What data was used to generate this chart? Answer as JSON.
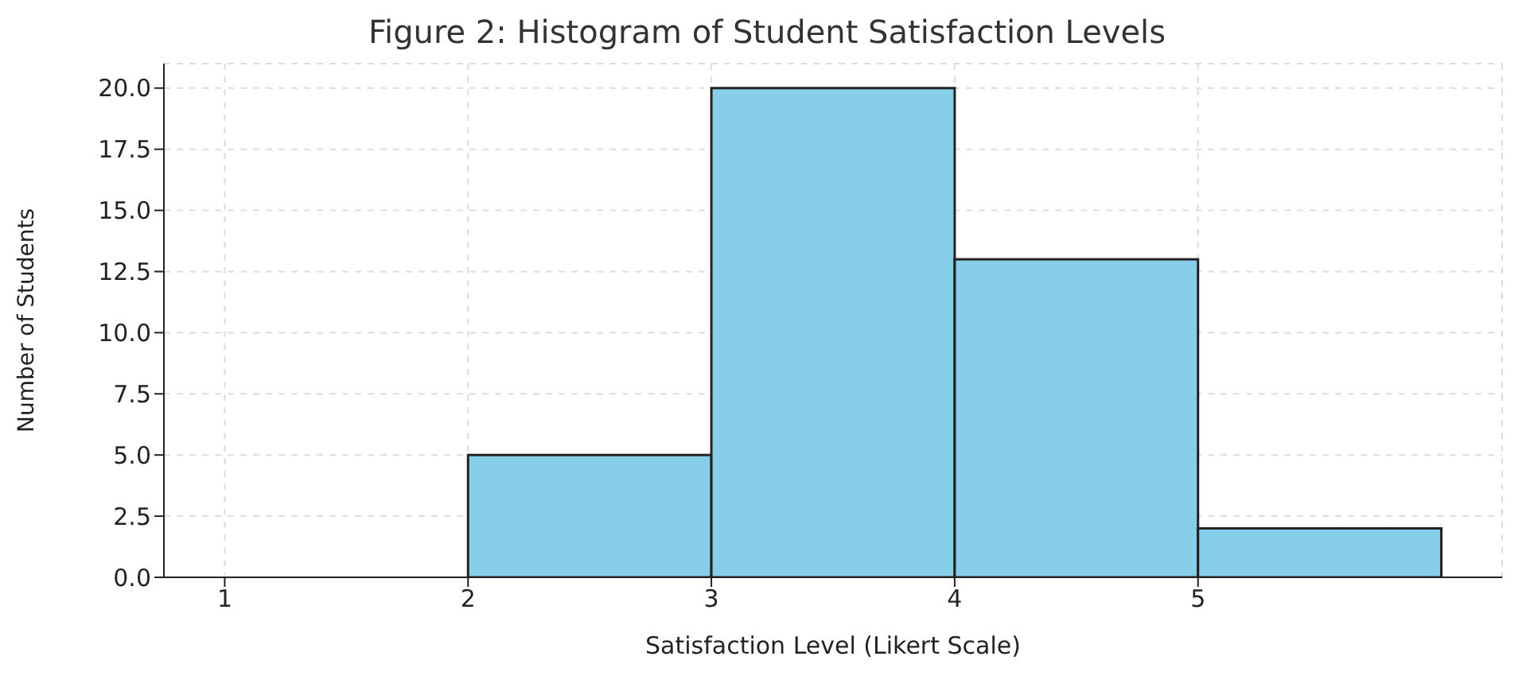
{
  "chart_data": {
    "type": "histogram",
    "title": "Figure 2: Histogram of Student Satisfaction Levels",
    "xlabel": "Satisfaction Level (Likert Scale)",
    "ylabel": "Number of Students",
    "bins": [
      1,
      2,
      3,
      4,
      5,
      6
    ],
    "values": [
      0,
      5,
      20,
      13,
      2
    ],
    "color": "#87ceeb",
    "xlim": [
      0.75,
      6.25
    ],
    "xticks": [
      1,
      2,
      3,
      4,
      5
    ],
    "ylim": [
      0,
      21
    ],
    "yticks": [
      {
        "value": 0,
        "label": "0.0"
      },
      {
        "value": 2.5,
        "label": "2.5"
      },
      {
        "value": 5,
        "label": "5.0"
      },
      {
        "value": 7.5,
        "label": "7.5"
      },
      {
        "value": 10,
        "label": "10.0"
      },
      {
        "value": 12.5,
        "label": "12.5"
      },
      {
        "value": 15,
        "label": "15.0"
      },
      {
        "value": 17.5,
        "label": "17.5"
      },
      {
        "value": 20,
        "label": "20.0"
      }
    ],
    "grid": true
  }
}
